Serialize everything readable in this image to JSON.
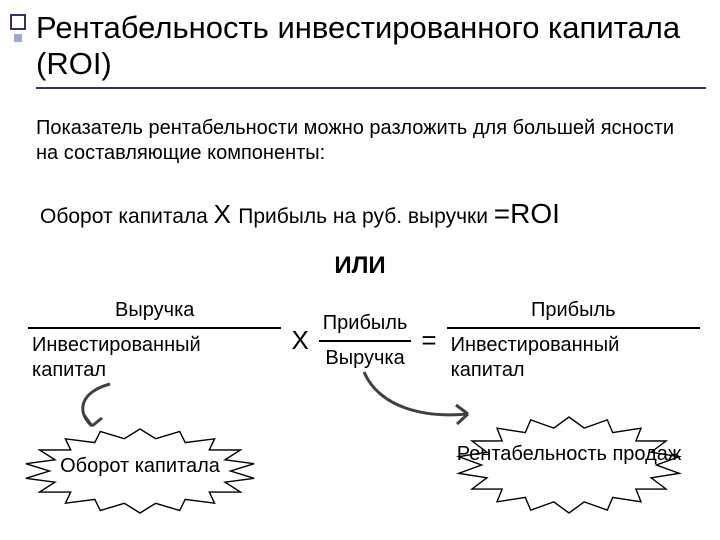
{
  "colors": {
    "accent": "#333366",
    "bullet_small": "#9fa8c8",
    "text": "#000000",
    "bg": "#ffffff",
    "starburst_stroke": "#000000",
    "arrow_stroke": "#404040"
  },
  "title": "Рентабельность инвестированного капитала (ROI)",
  "paragraph": "Показатель рентабельности можно разложить для большей ясности на составляющие компоненты:",
  "formula": {
    "left": "Оборот капитала",
    "mult": "Х",
    "right": "Прибыль на руб. выручки",
    "eq": "=ROI"
  },
  "or": "ИЛИ",
  "fractions": {
    "f1": {
      "num": "Выручка",
      "den": "Инвестированный капитал"
    },
    "op1": "Х",
    "f2": {
      "num": "Прибыль",
      "den": "Выручка"
    },
    "op2": "=",
    "f3": {
      "num": "Прибыль",
      "den": "Инвестированный капитал"
    }
  },
  "burst1": "Оборот капитала",
  "burst2": "Рентабельность продаж",
  "starburst": {
    "points": 18,
    "outer_r": 1.0,
    "inner_r": 0.78,
    "stroke_width": 1.4
  }
}
